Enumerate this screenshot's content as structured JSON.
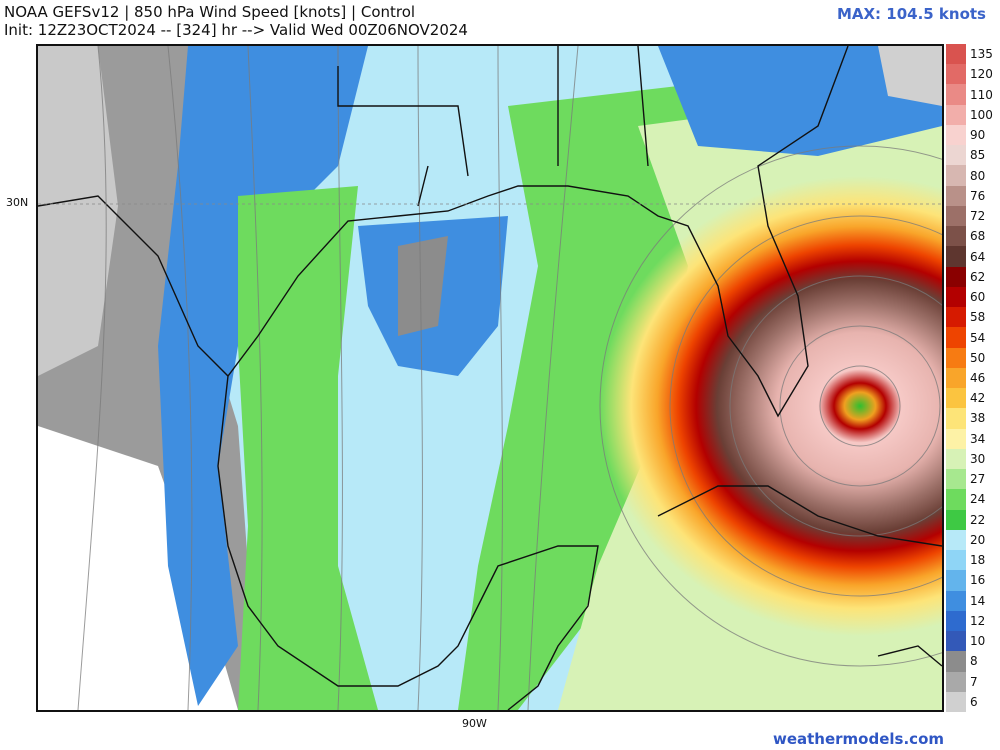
{
  "header": {
    "title_line1": "NOAA GEFSv12 | 850 hPa Wind Speed [knots] | Control",
    "title_line2": "Init: 12Z23OCT2024 -- [324] hr --> Valid Wed 00Z06NOV2024",
    "max_label": "MAX: 104.5 knots"
  },
  "axes": {
    "lat_label": "30N",
    "lon_label": "90W"
  },
  "colorbar": {
    "labels": [
      "135",
      "120",
      "110",
      "100",
      "90",
      "85",
      "80",
      "76",
      "72",
      "68",
      "64",
      "62",
      "60",
      "58",
      "54",
      "50",
      "46",
      "42",
      "38",
      "34",
      "30",
      "27",
      "24",
      "22",
      "20",
      "18",
      "16",
      "14",
      "12",
      "10",
      "8",
      "7",
      "6"
    ],
    "colors": [
      "#d9534f",
      "#e26a66",
      "#ea8a86",
      "#f2aeaa",
      "#f8d2cf",
      "#ecd6d2",
      "#d7b7b1",
      "#b99189",
      "#9c7068",
      "#7c5149",
      "#5e362f",
      "#8a0000",
      "#b30000",
      "#d61a00",
      "#ee4400",
      "#f77b12",
      "#f9a52a",
      "#fbc440",
      "#fde478",
      "#fdf2a6",
      "#d7f2b6",
      "#a7e88f",
      "#6edb5e",
      "#3ec944",
      "#b7e9f8",
      "#8fd5f6",
      "#63b4ec",
      "#3f8ee0",
      "#2e6bcf",
      "#3359b8",
      "#8c8c8c",
      "#a9a9a9",
      "#d0d0d0"
    ]
  },
  "footer": {
    "credit": "weathermodels.com"
  }
}
